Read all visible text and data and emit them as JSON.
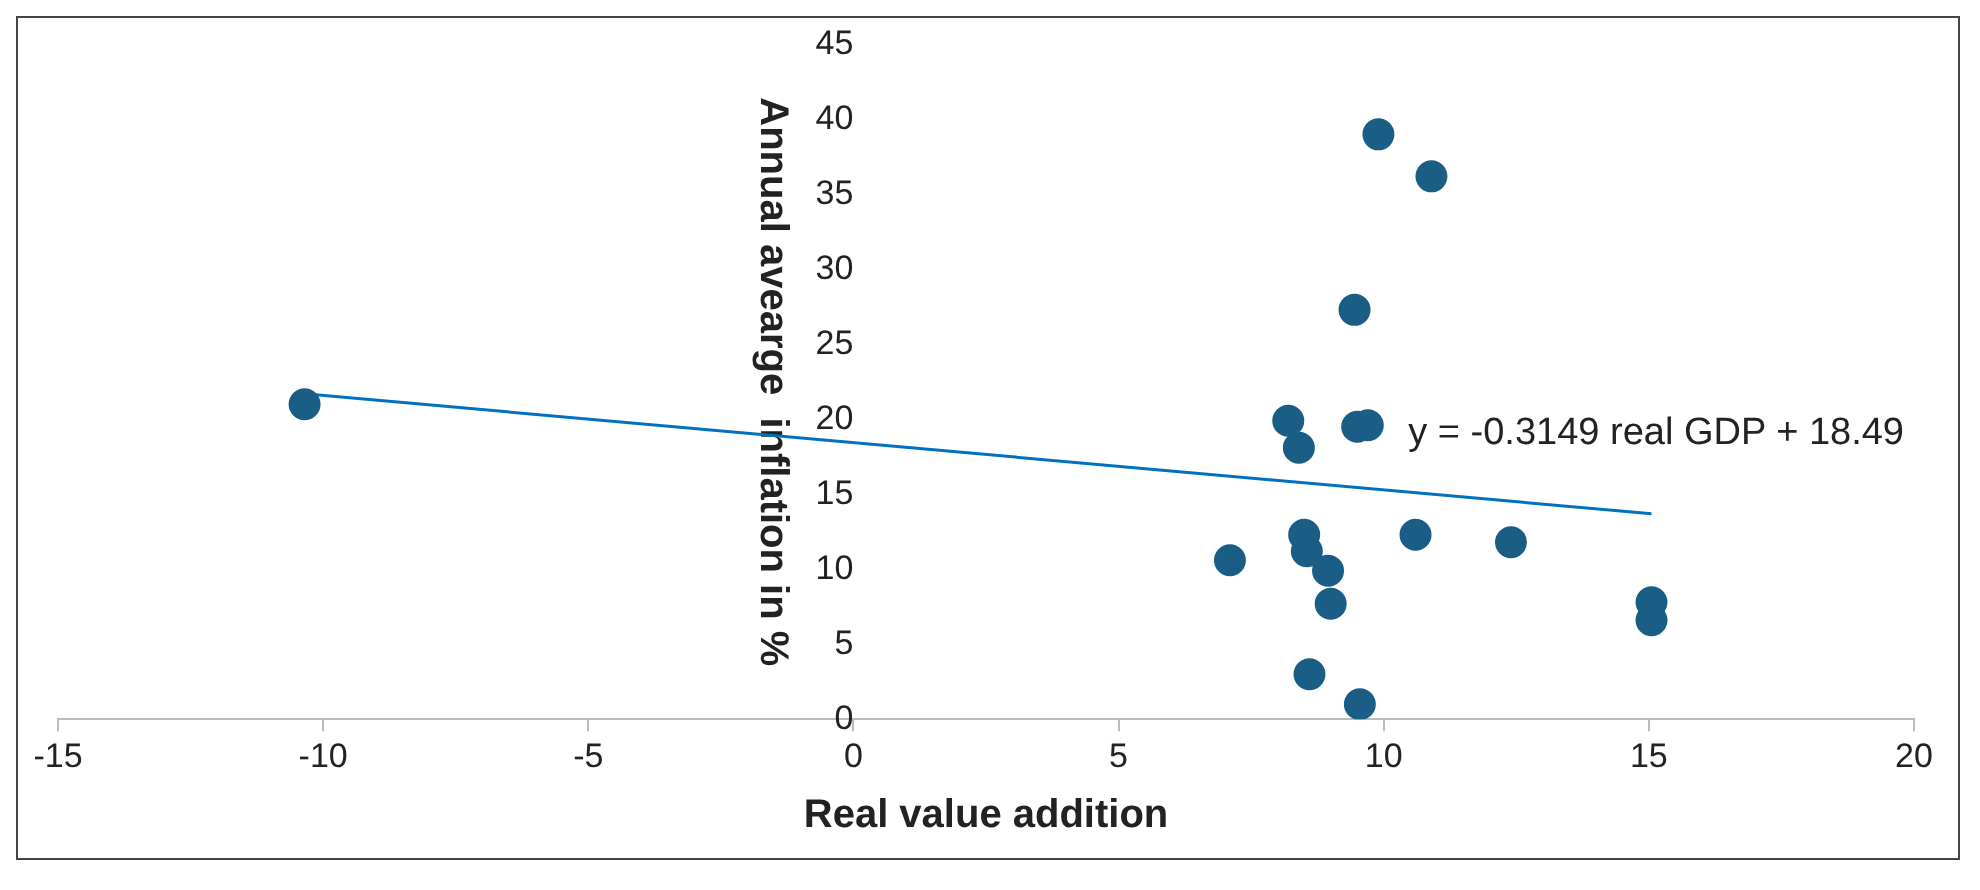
{
  "chart_data": {
    "type": "scatter",
    "xlabel": "Real value addition",
    "ylabel": "Annual avearge  inflation in %",
    "xlim": [
      -15,
      20
    ],
    "xticks": [
      -15,
      -10,
      -5,
      0,
      5,
      10,
      15,
      20
    ],
    "ylim": [
      0,
      45
    ],
    "yticks": [
      0,
      5,
      10,
      15,
      20,
      25,
      30,
      35,
      40,
      45
    ],
    "grid": false,
    "legend": false,
    "marker": "circle",
    "series": [
      {
        "color": "#1b5e85",
        "x": [
          -10.35,
          9.9,
          10.9,
          9.45,
          8.2,
          8.4,
          9.5,
          9.7,
          8.5,
          8.55,
          8.95,
          9.0,
          7.1,
          10.6,
          12.4,
          8.6,
          9.55,
          15.05,
          15.05
        ],
        "values": [
          21.0,
          39.0,
          36.2,
          27.3,
          19.9,
          18.1,
          19.5,
          19.6,
          12.3,
          11.2,
          9.9,
          7.7,
          10.6,
          12.3,
          11.8,
          3.0,
          1.0,
          7.8,
          6.6
        ]
      },
      {
        "type": "line",
        "color": "#0070c0",
        "x": [
          -10.35,
          15.05
        ],
        "values": [
          21.7,
          13.7
        ],
        "marker": "none"
      }
    ],
    "annotations": [
      "y = -0.3149 real GDP + 18.49"
    ]
  }
}
